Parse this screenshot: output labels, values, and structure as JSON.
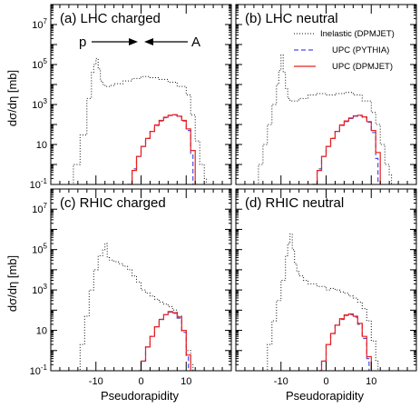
{
  "colors": {
    "inelastic": "#111111",
    "upc_pythia": "#4b4be6",
    "upc_dpmjet": "#e8211f",
    "frame": "#000000"
  },
  "x_axis_title": "Pseudorapidity",
  "y_axis_title": "dσ/dη [mb]",
  "beams": {
    "left": "p",
    "right": "A"
  },
  "legend": {
    "inelastic": "Inelastic (DPMJET)",
    "upc_pythia": "UPC (PYTHIA)",
    "upc_dpmjet": "UPC (DPMJET)"
  },
  "chart_data": [
    {
      "type": "line",
      "title": "(a) LHC charged",
      "xlabel": "",
      "ylabel": "dσ/dη [mb]",
      "xlim": [
        -20,
        20
      ],
      "ylim": [
        0.1,
        100000000
      ],
      "log_y": true,
      "x_ticks": [
        "-10",
        "0",
        "10"
      ],
      "y_ticks": [
        "10^-1",
        "10",
        "10^3",
        "10^5",
        "10^7"
      ],
      "series": [
        {
          "name": "Inelastic (DPMJET)",
          "style": "dotted",
          "x": [
            -16.5,
            -15,
            -13.5,
            -12,
            -11,
            -10.5,
            -10,
            -9.5,
            -9,
            -8.5,
            -8,
            -7,
            -6,
            -4,
            -2,
            0,
            2,
            4,
            6,
            8,
            10,
            11,
            12,
            13,
            14,
            14.5
          ],
          "y": [
            0.1,
            1,
            30,
            2000,
            40000,
            100000,
            200000,
            60000,
            15000,
            10000,
            8000,
            9000,
            11000,
            15000,
            20000,
            25000,
            22000,
            18000,
            13000,
            8000,
            3000,
            300,
            15,
            1,
            0.2,
            0.1
          ]
        },
        {
          "name": "UPC (PYTHIA)",
          "style": "dashed",
          "x": [
            -3,
            -2,
            -1,
            0,
            1,
            2,
            3,
            4,
            5,
            6,
            7,
            8,
            9,
            10,
            11,
            11.5
          ],
          "y": [
            0.1,
            0.6,
            2.5,
            8,
            20,
            45,
            90,
            150,
            220,
            280,
            300,
            250,
            150,
            50,
            3,
            0.1
          ]
        },
        {
          "name": "UPC (DPMJET)",
          "style": "solid",
          "x": [
            -3,
            -2,
            -1,
            0,
            1,
            2,
            3,
            4,
            5,
            6,
            7,
            8,
            9,
            10,
            11,
            12
          ],
          "y": [
            0.1,
            0.5,
            2.5,
            8,
            20,
            45,
            95,
            160,
            230,
            290,
            310,
            260,
            160,
            60,
            5,
            0.1
          ]
        }
      ]
    },
    {
      "type": "line",
      "title": "(b) LHC neutral",
      "xlabel": "",
      "ylabel": "",
      "xlim": [
        -20,
        20
      ],
      "ylim": [
        0.1,
        100000000
      ],
      "log_y": true,
      "x_ticks": [
        "-10",
        "0",
        "10"
      ],
      "series": [
        {
          "name": "Inelastic (DPMJET)",
          "style": "dotted",
          "x": [
            -16.5,
            -15,
            -14,
            -13,
            -12,
            -11,
            -10.5,
            -10,
            -9.5,
            -9,
            -8.5,
            -8,
            -7,
            -6,
            -4,
            -2,
            0,
            2,
            4,
            6,
            8,
            10,
            11,
            12,
            13,
            14,
            14.5
          ],
          "y": [
            0.1,
            1,
            10,
            100,
            1000,
            10000,
            50000,
            300000,
            40000,
            6000,
            2000,
            1500,
            1500,
            2000,
            3000,
            3500,
            3000,
            3500,
            4000,
            3000,
            1500,
            400,
            100,
            10,
            1,
            0.3,
            0.1
          ]
        },
        {
          "name": "UPC (PYTHIA)",
          "style": "dashed",
          "x": [
            -3,
            -2,
            -1,
            0,
            1,
            2,
            3,
            4,
            5,
            6,
            7,
            8,
            9,
            10,
            11,
            11.5
          ],
          "y": [
            0.1,
            0.6,
            2.5,
            8,
            20,
            45,
            90,
            140,
            200,
            260,
            280,
            230,
            130,
            40,
            2,
            0.1
          ]
        },
        {
          "name": "UPC (DPMJET)",
          "style": "solid",
          "x": [
            -3,
            -2,
            -1,
            0,
            1,
            2,
            3,
            4,
            5,
            6,
            7,
            8,
            9,
            10,
            11,
            12
          ],
          "y": [
            0.1,
            0.5,
            2.5,
            8,
            20,
            45,
            95,
            150,
            210,
            270,
            290,
            240,
            140,
            50,
            4,
            0.1
          ]
        }
      ]
    },
    {
      "type": "line",
      "title": "(c) RHIC charged",
      "xlabel": "Pseudorapidity",
      "ylabel": "dσ/dη [mb]",
      "xlim": [
        -20,
        20
      ],
      "ylim": [
        0.1,
        100000000
      ],
      "log_y": true,
      "x_ticks": [
        "-10",
        "0",
        "10"
      ],
      "y_ticks": [
        "10^-1",
        "10",
        "10^3",
        "10^5",
        "10^7"
      ],
      "series": [
        {
          "name": "Inelastic (DPMJET)",
          "style": "dotted",
          "x": [
            -14.5,
            -13.5,
            -12.5,
            -11.5,
            -10.5,
            -9.5,
            -8.5,
            -8,
            -7.5,
            -7,
            -6,
            -5,
            -4,
            -3,
            -2,
            -1,
            0,
            1,
            2,
            3,
            4,
            5,
            6,
            7,
            8,
            9,
            10,
            11,
            11.5
          ],
          "y": [
            0.1,
            2,
            50,
            1000,
            10000,
            50000,
            100000,
            200000,
            40000,
            30000,
            25000,
            20000,
            15000,
            10000,
            5000,
            2500,
            1000,
            700,
            500,
            350,
            250,
            200,
            150,
            100,
            50,
            10,
            1,
            0.2,
            0.1
          ]
        },
        {
          "name": "UPC (PYTHIA)",
          "style": "dashed",
          "x": [
            -0.5,
            0,
            1,
            2,
            3,
            4,
            5,
            6,
            7,
            8,
            9,
            10,
            10.5
          ],
          "y": [
            0.1,
            0.3,
            1.5,
            5,
            15,
            35,
            60,
            80,
            70,
            40,
            8,
            0.5,
            0.1
          ]
        },
        {
          "name": "UPC (DPMJET)",
          "style": "solid",
          "x": [
            -0.5,
            0,
            1,
            2,
            3,
            4,
            5,
            6,
            7,
            8,
            9,
            10,
            11
          ],
          "y": [
            0.1,
            0.3,
            1.5,
            5,
            15,
            35,
            60,
            85,
            75,
            45,
            10,
            0.6,
            0.1
          ]
        }
      ]
    },
    {
      "type": "line",
      "title": "(d) RHIC neutral",
      "xlabel": "Pseudorapidity",
      "ylabel": "",
      "xlim": [
        -20,
        20
      ],
      "ylim": [
        0.1,
        100000000
      ],
      "log_y": true,
      "x_ticks": [
        "-10",
        "0",
        "10"
      ],
      "series": [
        {
          "name": "Inelastic (DPMJET)",
          "style": "dotted",
          "x": [
            -14,
            -13,
            -12,
            -11,
            -10,
            -9,
            -8.5,
            -8,
            -7.5,
            -7,
            -6.5,
            -6,
            -5,
            -4,
            -3,
            -2,
            -1,
            0,
            1,
            2,
            3,
            4,
            5,
            6,
            7,
            8,
            9,
            10,
            11,
            11.5
          ],
          "y": [
            0.1,
            2,
            30,
            300,
            3000,
            50000,
            200000,
            600000,
            100000,
            20000,
            8000,
            5000,
            3000,
            2000,
            2000,
            1500,
            1500,
            1000,
            1200,
            1000,
            800,
            700,
            500,
            400,
            250,
            120,
            30,
            3,
            0.3,
            0.1
          ]
        },
        {
          "name": "UPC (PYTHIA)",
          "style": "dashed",
          "x": [
            -1.5,
            -1,
            0,
            1,
            2,
            3,
            4,
            5,
            6,
            7,
            8,
            9,
            9.5
          ],
          "y": [
            0.1,
            0.3,
            2,
            7,
            18,
            35,
            55,
            60,
            45,
            20,
            4,
            0.4,
            0.1
          ]
        },
        {
          "name": "UPC (DPMJET)",
          "style": "solid",
          "x": [
            -1.5,
            -1,
            0,
            1,
            2,
            3,
            4,
            5,
            6,
            7,
            8,
            9,
            10
          ],
          "y": [
            0.1,
            0.3,
            2,
            7,
            18,
            38,
            58,
            65,
            50,
            22,
            5,
            0.5,
            0.1
          ]
        }
      ]
    }
  ]
}
